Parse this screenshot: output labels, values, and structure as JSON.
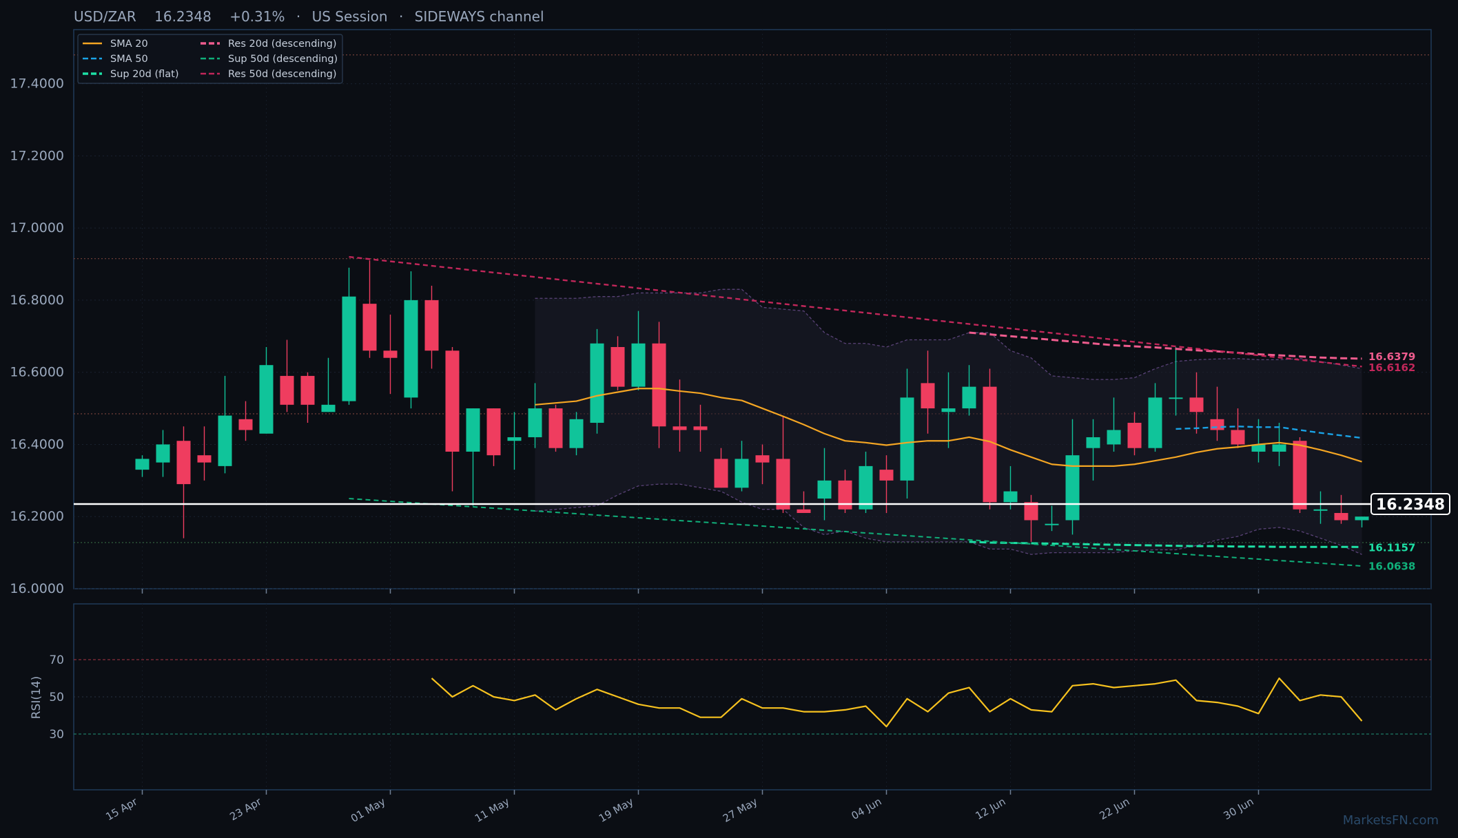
{
  "header": {
    "symbol": "USD/ZAR",
    "price": "16.2348",
    "change": "+0.31%",
    "session": "US Session",
    "regime": "SIDEWAYS channel",
    "separator": "·"
  },
  "watermark": "MarketsFN.com",
  "colors": {
    "background": "#0b0e14",
    "up": "#10c49a",
    "down": "#ef3d5f",
    "sma20": "#f5a623",
    "sma50": "#1aa3e6",
    "sup20": "#1de0a5",
    "res20": "#ef5c8e",
    "sup50": "#10b07a",
    "res50": "#c2275a",
    "rsi": "#f7c21f",
    "price_line": "#ffffff",
    "frame": "#1f3a5a"
  },
  "chart_data": {
    "type": "candlestick",
    "price_axis": {
      "ticks": [
        "16.0000",
        "16.2000",
        "16.4000",
        "16.6000",
        "16.8000",
        "17.0000",
        "17.2000",
        "17.4000"
      ],
      "ylim": [
        16.0,
        17.55
      ]
    },
    "x_axis": {
      "ticks": [
        {
          "label": "15 Apr",
          "index": 0
        },
        {
          "label": "23 Apr",
          "index": 6
        },
        {
          "label": "01 May",
          "index": 12
        },
        {
          "label": "11 May",
          "index": 18
        },
        {
          "label": "19 May",
          "index": 24
        },
        {
          "label": "27 May",
          "index": 30
        },
        {
          "label": "04 Jun",
          "index": 36
        },
        {
          "label": "12 Jun",
          "index": 42
        },
        {
          "label": "22 Jun",
          "index": 48
        },
        {
          "label": "30 Jun",
          "index": 54
        }
      ],
      "n_bars": 60
    },
    "candles": [
      {
        "o": 16.33,
        "h": 16.37,
        "l": 16.31,
        "c": 16.36
      },
      {
        "o": 16.35,
        "h": 16.44,
        "l": 16.31,
        "c": 16.4
      },
      {
        "o": 16.41,
        "h": 16.45,
        "l": 16.14,
        "c": 16.29
      },
      {
        "o": 16.37,
        "h": 16.45,
        "l": 16.3,
        "c": 16.35
      },
      {
        "o": 16.34,
        "h": 16.59,
        "l": 16.32,
        "c": 16.48
      },
      {
        "o": 16.47,
        "h": 16.52,
        "l": 16.41,
        "c": 16.44
      },
      {
        "o": 16.43,
        "h": 16.67,
        "l": 16.43,
        "c": 16.62
      },
      {
        "o": 16.59,
        "h": 16.69,
        "l": 16.49,
        "c": 16.51
      },
      {
        "o": 16.59,
        "h": 16.6,
        "l": 16.46,
        "c": 16.51
      },
      {
        "o": 16.49,
        "h": 16.64,
        "l": 16.49,
        "c": 16.51
      },
      {
        "o": 16.52,
        "h": 16.89,
        "l": 16.51,
        "c": 16.81
      },
      {
        "o": 16.79,
        "h": 16.91,
        "l": 16.64,
        "c": 16.66
      },
      {
        "o": 16.66,
        "h": 16.76,
        "l": 16.54,
        "c": 16.64
      },
      {
        "o": 16.53,
        "h": 16.88,
        "l": 16.5,
        "c": 16.8
      },
      {
        "o": 16.8,
        "h": 16.84,
        "l": 16.61,
        "c": 16.66
      },
      {
        "o": 16.66,
        "h": 16.67,
        "l": 16.27,
        "c": 16.38
      },
      {
        "o": 16.38,
        "h": 16.5,
        "l": 16.23,
        "c": 16.5
      },
      {
        "o": 16.5,
        "h": 16.5,
        "l": 16.34,
        "c": 16.37
      },
      {
        "o": 16.41,
        "h": 16.49,
        "l": 16.33,
        "c": 16.42
      },
      {
        "o": 16.42,
        "h": 16.57,
        "l": 16.39,
        "c": 16.5
      },
      {
        "o": 16.5,
        "h": 16.51,
        "l": 16.38,
        "c": 16.39
      },
      {
        "o": 16.39,
        "h": 16.49,
        "l": 16.37,
        "c": 16.47
      },
      {
        "o": 16.46,
        "h": 16.72,
        "l": 16.43,
        "c": 16.68
      },
      {
        "o": 16.67,
        "h": 16.7,
        "l": 16.55,
        "c": 16.56
      },
      {
        "o": 16.56,
        "h": 16.77,
        "l": 16.55,
        "c": 16.68
      },
      {
        "o": 16.68,
        "h": 16.74,
        "l": 16.39,
        "c": 16.45
      },
      {
        "o": 16.45,
        "h": 16.58,
        "l": 16.38,
        "c": 16.44
      },
      {
        "o": 16.45,
        "h": 16.51,
        "l": 16.38,
        "c": 16.44
      },
      {
        "o": 16.36,
        "h": 16.39,
        "l": 16.28,
        "c": 16.28
      },
      {
        "o": 16.28,
        "h": 16.41,
        "l": 16.27,
        "c": 16.36
      },
      {
        "o": 16.37,
        "h": 16.4,
        "l": 16.29,
        "c": 16.35
      },
      {
        "o": 16.36,
        "h": 16.48,
        "l": 16.21,
        "c": 16.22
      },
      {
        "o": 16.22,
        "h": 16.27,
        "l": 16.21,
        "c": 16.21
      },
      {
        "o": 16.25,
        "h": 16.39,
        "l": 16.19,
        "c": 16.3
      },
      {
        "o": 16.3,
        "h": 16.33,
        "l": 16.21,
        "c": 16.22
      },
      {
        "o": 16.22,
        "h": 16.38,
        "l": 16.21,
        "c": 16.34
      },
      {
        "o": 16.33,
        "h": 16.37,
        "l": 16.21,
        "c": 16.3
      },
      {
        "o": 16.3,
        "h": 16.61,
        "l": 16.25,
        "c": 16.53
      },
      {
        "o": 16.57,
        "h": 16.66,
        "l": 16.43,
        "c": 16.5
      },
      {
        "o": 16.49,
        "h": 16.6,
        "l": 16.39,
        "c": 16.5
      },
      {
        "o": 16.5,
        "h": 16.62,
        "l": 16.48,
        "c": 16.56
      },
      {
        "o": 16.56,
        "h": 16.61,
        "l": 16.22,
        "c": 16.24
      },
      {
        "o": 16.24,
        "h": 16.34,
        "l": 16.22,
        "c": 16.27
      },
      {
        "o": 16.24,
        "h": 16.26,
        "l": 16.13,
        "c": 16.19
      },
      {
        "o": 16.18,
        "h": 16.23,
        "l": 16.16,
        "c": 16.18
      },
      {
        "o": 16.19,
        "h": 16.47,
        "l": 16.15,
        "c": 16.37
      },
      {
        "o": 16.39,
        "h": 16.47,
        "l": 16.3,
        "c": 16.42
      },
      {
        "o": 16.4,
        "h": 16.53,
        "l": 16.38,
        "c": 16.44
      },
      {
        "o": 16.46,
        "h": 16.49,
        "l": 16.37,
        "c": 16.39
      },
      {
        "o": 16.39,
        "h": 16.57,
        "l": 16.38,
        "c": 16.53
      },
      {
        "o": 16.53,
        "h": 16.67,
        "l": 16.48,
        "c": 16.53
      },
      {
        "o": 16.53,
        "h": 16.6,
        "l": 16.43,
        "c": 16.49
      },
      {
        "o": 16.47,
        "h": 16.56,
        "l": 16.41,
        "c": 16.44
      },
      {
        "o": 16.44,
        "h": 16.5,
        "l": 16.39,
        "c": 16.4
      },
      {
        "o": 16.38,
        "h": 16.47,
        "l": 16.35,
        "c": 16.4
      },
      {
        "o": 16.38,
        "h": 16.46,
        "l": 16.34,
        "c": 16.4
      },
      {
        "o": 16.41,
        "h": 16.42,
        "l": 16.21,
        "c": 16.22
      },
      {
        "o": 16.22,
        "h": 16.27,
        "l": 16.18,
        "c": 16.22
      },
      {
        "o": 16.21,
        "h": 16.26,
        "l": 16.18,
        "c": 16.19
      },
      {
        "o": 16.19,
        "h": 16.2,
        "l": 16.17,
        "c": 16.2
      }
    ],
    "series": [
      {
        "name": "SMA 20",
        "style": "solid",
        "start": 19,
        "values": [
          16.51,
          16.515,
          16.52,
          16.535,
          16.545,
          16.555,
          16.555,
          16.548,
          16.542,
          16.53,
          16.522,
          16.5,
          16.478,
          16.455,
          16.43,
          16.41,
          16.405,
          16.398,
          16.405,
          16.41,
          16.41,
          16.42,
          16.408,
          16.385,
          16.365,
          16.345,
          16.34,
          16.34,
          16.34,
          16.345,
          16.355,
          16.365,
          16.378,
          16.388,
          16.393,
          16.4,
          16.405,
          16.398,
          16.385,
          16.37,
          16.352
        ]
      },
      {
        "name": "SMA 50",
        "style": "dashed",
        "start": 50,
        "values": [
          16.443,
          16.445,
          16.448,
          16.45,
          16.448,
          16.448,
          16.44,
          16.432,
          16.425,
          16.418
        ]
      },
      {
        "name": "Sup 20d (flat)",
        "style": "dashed",
        "start": 40,
        "values": [
          16.13,
          16.128,
          16.127,
          16.126,
          16.125,
          16.124,
          16.123,
          16.122,
          16.121,
          16.12,
          16.119,
          16.118,
          16.118,
          16.117,
          16.117,
          16.116,
          16.116,
          16.116,
          16.116,
          16.1157
        ]
      },
      {
        "name": "Res 20d (descending)",
        "style": "dashed",
        "start": 40,
        "values": [
          16.71,
          16.705,
          16.7,
          16.695,
          16.69,
          16.685,
          16.68,
          16.675,
          16.672,
          16.669,
          16.665,
          16.661,
          16.658,
          16.654,
          16.65,
          16.647,
          16.644,
          16.641,
          16.639,
          16.6379
        ]
      },
      {
        "name": "Sup 50d (descending)",
        "style": "dashed",
        "start": 10,
        "values": [
          16.25,
          16.063
        ]
      },
      {
        "name": "Res 50d (descending)",
        "style": "dashed",
        "start": 10,
        "values": [
          16.92,
          16.616
        ]
      }
    ],
    "bollinger": {
      "start": 19,
      "upper": [
        16.805,
        16.805,
        16.805,
        16.81,
        16.81,
        16.82,
        16.82,
        16.82,
        16.82,
        16.83,
        16.83,
        16.78,
        16.775,
        16.77,
        16.71,
        16.68,
        16.68,
        16.67,
        16.69,
        16.69,
        16.69,
        16.71,
        16.71,
        16.66,
        16.64,
        16.59,
        16.585,
        16.58,
        16.58,
        16.585,
        16.61,
        16.63,
        16.635,
        16.637,
        16.638,
        16.635,
        16.635,
        16.638,
        16.63,
        16.62,
        16.61
      ],
      "lower": [
        16.215,
        16.22,
        16.225,
        16.23,
        16.26,
        16.285,
        16.29,
        16.29,
        16.28,
        16.27,
        16.24,
        16.22,
        16.22,
        16.17,
        16.15,
        16.16,
        16.14,
        16.13,
        16.13,
        16.13,
        16.13,
        16.13,
        16.11,
        16.11,
        16.095,
        16.1,
        16.1,
        16.1,
        16.1,
        16.105,
        16.108,
        16.108,
        16.12,
        16.135,
        16.145,
        16.165,
        16.17,
        16.16,
        16.14,
        16.12,
        16.095
      ]
    },
    "levels": [
      {
        "value": 17.48,
        "color": "#6b3b36"
      },
      {
        "value": 16.915,
        "color": "#6b3b36"
      },
      {
        "value": 16.485,
        "color": "#6b3b36"
      },
      {
        "value": 16.128,
        "color": "#2f5a3a"
      }
    ],
    "current_price": 16.2348,
    "end_labels": [
      {
        "text": "16.6379",
        "value": 16.6379,
        "color": "#ef5c8e"
      },
      {
        "text": "16.6162",
        "value": 16.6162,
        "color": "#c2275a"
      },
      {
        "text": "16.1157",
        "value": 16.1157,
        "color": "#1de0a5"
      },
      {
        "text": "16.0638",
        "value": 16.0638,
        "color": "#10b07a"
      }
    ],
    "rsi": {
      "label": "RSI(14)",
      "ticks": [
        "30",
        "50",
        "70"
      ],
      "ylim": [
        0,
        100
      ],
      "overbought": 70,
      "oversold": 30,
      "start": 14,
      "values": [
        60,
        50,
        56,
        50,
        48,
        51,
        43,
        49,
        54,
        50,
        46,
        44,
        44,
        39,
        39,
        49,
        44,
        44,
        42,
        42,
        43,
        45,
        34,
        49,
        42,
        52,
        55,
        42,
        49,
        43,
        42,
        56,
        57,
        55,
        56,
        57,
        59,
        48,
        47,
        45,
        41,
        60,
        48,
        51,
        50,
        37
      ]
    },
    "legend": {
      "placement": "top-left",
      "items": [
        {
          "name": "SMA 20",
          "color": "#f5a623",
          "dash": "solid"
        },
        {
          "name": "SMA 50",
          "color": "#1aa3e6",
          "dash": "dashed"
        },
        {
          "name": "Sup 20d (flat)",
          "color": "#1de0a5",
          "dash": "dashed"
        },
        {
          "name": "Res 20d (descending)",
          "color": "#ef5c8e",
          "dash": "dashed"
        },
        {
          "name": "Sup 50d (descending)",
          "color": "#10b07a",
          "dash": "dashed"
        },
        {
          "name": "Res 50d (descending)",
          "color": "#c2275a",
          "dash": "dashed"
        }
      ]
    }
  }
}
